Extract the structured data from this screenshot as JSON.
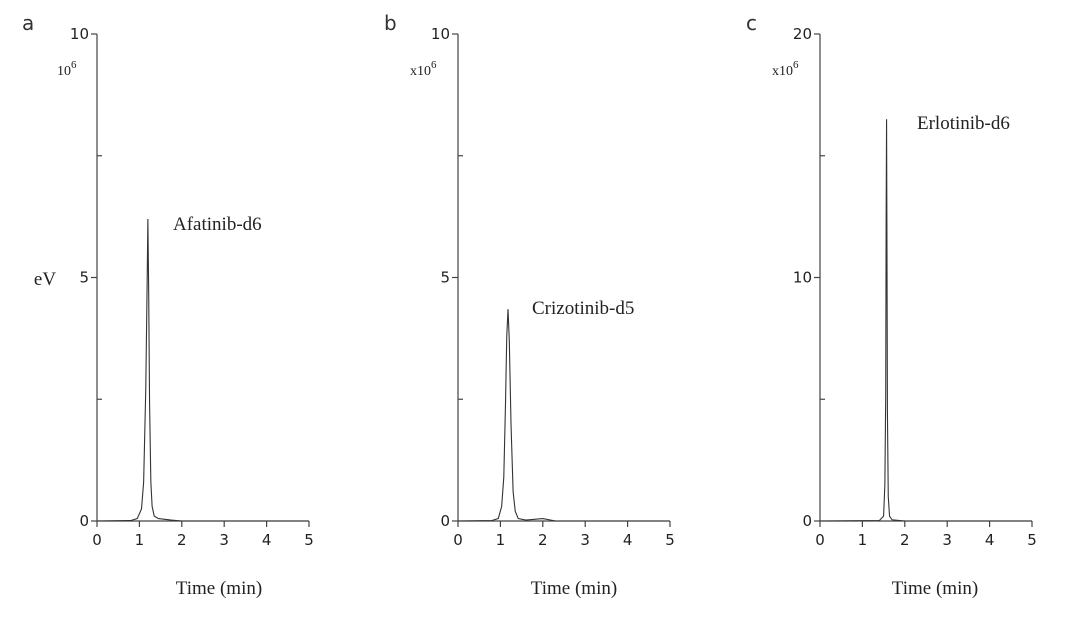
{
  "chart_data": [
    {
      "type": "line",
      "panel_label": "a",
      "multiplier_base": "10",
      "multiplier_exp": "6",
      "ylabel": "eV",
      "xlabel": "Time (min)",
      "xlim": [
        0,
        5
      ],
      "ylim": [
        0,
        10
      ],
      "x_ticks": [
        "0",
        "1",
        "2",
        "3",
        "4",
        "5"
      ],
      "y_ticks": [
        "0",
        "5",
        "10"
      ],
      "series": [
        {
          "name": "Afatinib-d6",
          "x": [
            0,
            0.8,
            0.95,
            1.05,
            1.1,
            1.15,
            1.18,
            1.2,
            1.22,
            1.24,
            1.27,
            1.3,
            1.35,
            1.45,
            1.75,
            2.0,
            5
          ],
          "y": [
            0,
            0.01,
            0.05,
            0.25,
            0.8,
            2.7,
            4.7,
            6.2,
            4.6,
            2.4,
            0.8,
            0.3,
            0.1,
            0.05,
            0.02,
            0,
            0
          ]
        }
      ]
    },
    {
      "type": "line",
      "panel_label": "b",
      "multiplier_base": "x10",
      "multiplier_exp": "6",
      "xlabel": "Time (min)",
      "xlim": [
        0,
        5
      ],
      "ylim": [
        0,
        10
      ],
      "x_ticks": [
        "0",
        "1",
        "2",
        "3",
        "4",
        "5"
      ],
      "y_ticks": [
        "0",
        "5",
        "10"
      ],
      "series": [
        {
          "name": "Crizotinib-d5",
          "x": [
            0,
            0.8,
            0.95,
            1.03,
            1.08,
            1.12,
            1.15,
            1.18,
            1.21,
            1.25,
            1.3,
            1.35,
            1.42,
            1.6,
            2.0,
            2.3,
            5
          ],
          "y": [
            0,
            0.01,
            0.05,
            0.3,
            0.9,
            2.4,
            3.8,
            4.35,
            3.7,
            2.0,
            0.6,
            0.2,
            0.05,
            0.02,
            0.05,
            0,
            0
          ]
        }
      ]
    },
    {
      "type": "line",
      "panel_label": "c",
      "multiplier_base": "x10",
      "multiplier_exp": "6",
      "xlabel": "Time (min)",
      "xlim": [
        0,
        5
      ],
      "ylim": [
        0,
        20
      ],
      "x_ticks": [
        "0",
        "1",
        "2",
        "3",
        "4",
        "5"
      ],
      "y_ticks": [
        "0",
        "10",
        "20"
      ],
      "series": [
        {
          "name": "Erlotinib-d6",
          "x": [
            0,
            1.4,
            1.5,
            1.53,
            1.55,
            1.56,
            1.57,
            1.58,
            1.59,
            1.61,
            1.64,
            1.7,
            2.0,
            5
          ],
          "y": [
            0,
            0.02,
            0.2,
            1.5,
            5.2,
            12.5,
            16.5,
            11.0,
            4.5,
            1.0,
            0.2,
            0.05,
            0,
            0
          ]
        }
      ]
    }
  ]
}
